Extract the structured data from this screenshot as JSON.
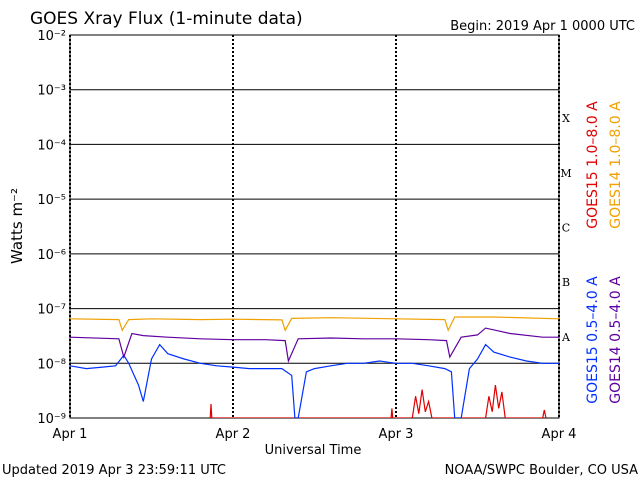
{
  "chart_data": {
    "type": "line",
    "title": "GOES Xray Flux (1-minute data)",
    "subtitle": "Begin:  2019 Apr 1 0000 UTC",
    "x_label": "Universal Time",
    "y_label": "Watts m⁻²",
    "log_y": true,
    "grid": true,
    "footer_left": "Updated 2019 Apr  3 23:59:11 UTC",
    "footer_right": "NOAA/SWPC Boulder, CO USA",
    "xlim": [
      0,
      3
    ],
    "xticks": [
      {
        "value": 0,
        "label": "Apr 1"
      },
      {
        "value": 1,
        "label": "Apr 2"
      },
      {
        "value": 2,
        "label": "Apr 3"
      },
      {
        "value": 3,
        "label": "Apr 4"
      }
    ],
    "ylim": [
      1e-09,
      0.01
    ],
    "yticks": [
      {
        "value": 1e-09,
        "label": "10⁻⁹"
      },
      {
        "value": 1e-08,
        "label": "10⁻⁸"
      },
      {
        "value": 1e-07,
        "label": "10⁻⁷"
      },
      {
        "value": 1e-06,
        "label": "10⁻⁶"
      },
      {
        "value": 1e-05,
        "label": "10⁻⁵"
      },
      {
        "value": 0.0001,
        "label": "10⁻⁴"
      },
      {
        "value": 0.001,
        "label": "10⁻³"
      },
      {
        "value": 0.01,
        "label": "10⁻²"
      }
    ],
    "classes": [
      {
        "label": "A",
        "value": 1e-08
      },
      {
        "label": "B",
        "value": 1e-07
      },
      {
        "label": "C",
        "value": 1e-06
      },
      {
        "label": "M",
        "value": 1e-05
      },
      {
        "label": "X",
        "value": 0.0001
      }
    ],
    "series": [
      {
        "name": "GOES15 1.0–8.0 A",
        "color": "#e00000",
        "x": [
          0.86,
          0.865,
          0.87,
          1.97,
          1.975,
          1.98,
          2.1,
          2.12,
          2.14,
          2.16,
          2.18,
          2.2,
          2.22,
          2.55,
          2.57,
          2.59,
          2.61,
          2.63,
          2.65,
          2.67,
          2.9,
          2.91,
          2.92
        ],
        "values": [
          1e-09,
          1.8e-09,
          1e-09,
          1e-09,
          1.5e-09,
          1e-09,
          1e-09,
          2.5e-09,
          1.2e-09,
          3.3e-09,
          1.3e-09,
          2e-09,
          1e-09,
          1e-09,
          2.5e-09,
          1.3e-09,
          4e-09,
          1.5e-09,
          3e-09,
          1e-09,
          1e-09,
          1.4e-09,
          1e-09
        ]
      },
      {
        "name": "GOES14 1.0–8.0 A",
        "color": "#f0a000",
        "x": [
          0,
          0.3,
          0.32,
          0.36,
          0.5,
          0.8,
          1.0,
          1.3,
          1.32,
          1.36,
          1.6,
          2.0,
          2.3,
          2.32,
          2.36,
          2.6,
          3.0
        ],
        "values": [
          6.5e-08,
          6.3e-08,
          4e-08,
          6.3e-08,
          6.5e-08,
          6.3e-08,
          6.4e-08,
          6.2e-08,
          4e-08,
          6.6e-08,
          6.8e-08,
          6.5e-08,
          6.3e-08,
          4e-08,
          7e-08,
          7e-08,
          6.5e-08
        ]
      },
      {
        "name": "GOES15 0.5–4.0 A",
        "color": "#0030ff",
        "x": [
          0,
          0.1,
          0.2,
          0.28,
          0.33,
          0.36,
          0.42,
          0.45,
          0.5,
          0.55,
          0.6,
          0.7,
          0.8,
          0.9,
          1.0,
          1.1,
          1.2,
          1.3,
          1.36,
          1.38,
          1.4,
          1.45,
          1.5,
          1.6,
          1.7,
          1.8,
          1.9,
          2.0,
          2.1,
          2.2,
          2.3,
          2.34,
          2.36,
          2.4,
          2.45,
          2.5,
          2.55,
          2.6,
          2.7,
          2.8,
          2.9,
          3.0
        ],
        "values": [
          9e-09,
          8e-09,
          8.5e-09,
          9e-09,
          1.4e-08,
          1e-08,
          4e-09,
          2e-09,
          1.2e-08,
          2.2e-08,
          1.5e-08,
          1.2e-08,
          1e-08,
          9e-09,
          8.5e-09,
          8e-09,
          8e-09,
          8e-09,
          6e-09,
          1e-09,
          1e-09,
          7e-09,
          8e-09,
          9e-09,
          1e-08,
          1e-08,
          1.1e-08,
          1e-08,
          1e-08,
          9e-09,
          8e-09,
          7e-09,
          1e-09,
          1e-09,
          8e-09,
          1.2e-08,
          2.2e-08,
          1.6e-08,
          1.3e-08,
          1.1e-08,
          1e-08,
          1e-08
        ]
      },
      {
        "name": "GOES14 0.5–4.0 A",
        "color": "#6000a0",
        "x": [
          0,
          0.3,
          0.33,
          0.38,
          0.45,
          0.6,
          0.8,
          1.0,
          1.2,
          1.32,
          1.34,
          1.4,
          1.6,
          1.8,
          2.0,
          2.2,
          2.31,
          2.33,
          2.4,
          2.5,
          2.55,
          2.7,
          2.9,
          3.0
        ],
        "values": [
          3e-08,
          2.8e-08,
          1.3e-08,
          3.5e-08,
          3.2e-08,
          3e-08,
          2.8e-08,
          2.7e-08,
          2.7e-08,
          2.6e-08,
          1.1e-08,
          2.8e-08,
          2.9e-08,
          2.8e-08,
          2.8e-08,
          2.7e-08,
          2.6e-08,
          1.3e-08,
          3e-08,
          3.3e-08,
          4.4e-08,
          3.5e-08,
          3e-08,
          3e-08
        ]
      }
    ]
  }
}
